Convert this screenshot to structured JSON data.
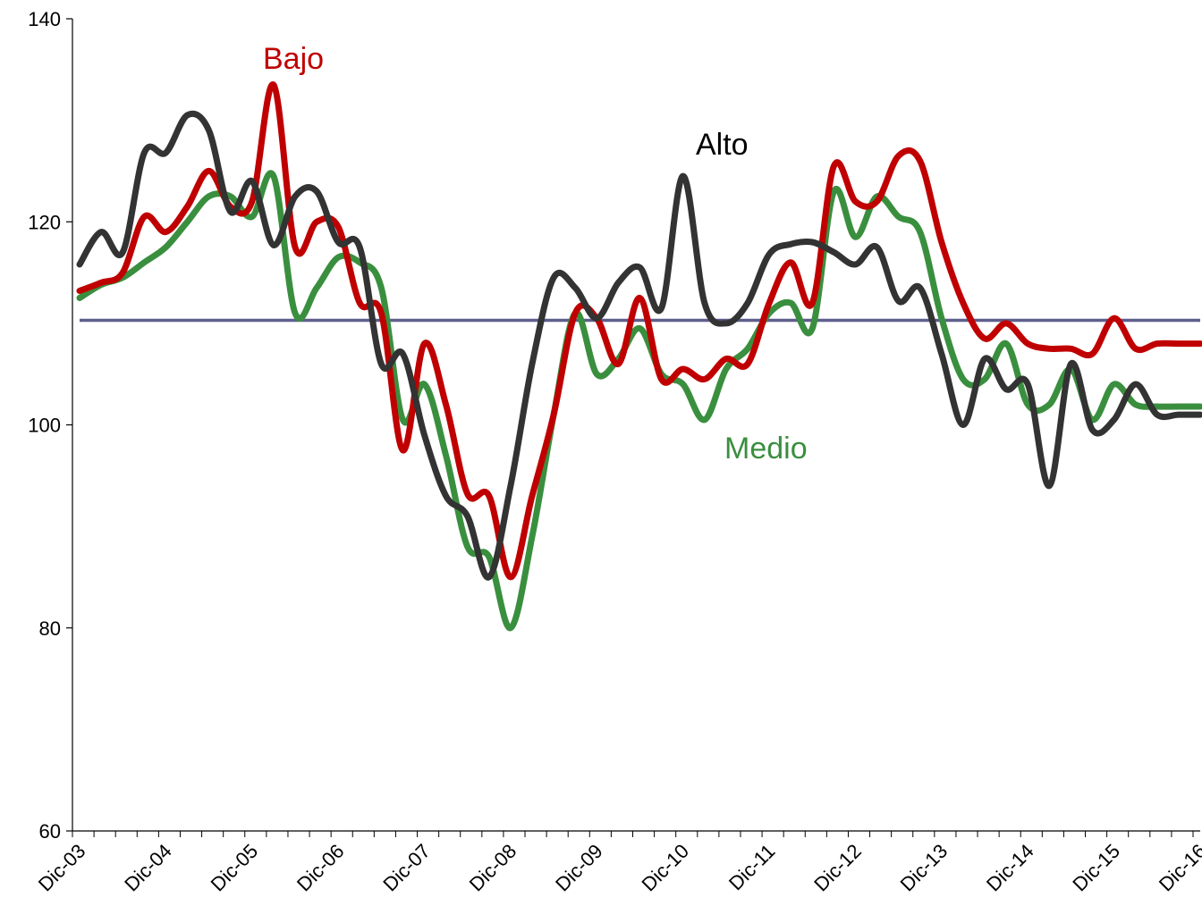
{
  "chart_data": {
    "type": "line",
    "title": "",
    "xlabel": "",
    "ylabel": "",
    "ylim": [
      60,
      140
    ],
    "yticks": [
      60,
      80,
      100,
      120,
      140
    ],
    "xlim": [
      2003.917,
      2017.0
    ],
    "x_tick_labels": [
      "Dic-03",
      "Dic-04",
      "Dic-05",
      "Dic-06",
      "Dic-07",
      "Dic-08",
      "Dic-09",
      "Dic-10",
      "Dic-11",
      "Dic-12",
      "Dic-13",
      "Dic-14",
      "Dic-15",
      "Dic-16"
    ],
    "reference_line": {
      "value": 110.3,
      "color": "#5e5e8e"
    },
    "legend": "direct labels on lines",
    "grid": false,
    "series": [
      {
        "name": "Alto",
        "color": "#333333",
        "x": [
          2004.0,
          2004.25,
          2004.5,
          2004.75,
          2005.0,
          2005.25,
          2005.5,
          2005.75,
          2006.0,
          2006.25,
          2006.5,
          2006.75,
          2007.0,
          2007.25,
          2007.5,
          2007.75,
          2008.0,
          2008.25,
          2008.5,
          2008.75,
          2009.0,
          2009.25,
          2009.5,
          2009.75,
          2010.0,
          2010.25,
          2010.5,
          2010.75,
          2011.0,
          2011.25,
          2011.5,
          2011.75,
          2012.0,
          2012.25,
          2012.5,
          2012.75,
          2013.0,
          2013.25,
          2013.5,
          2013.75,
          2014.0,
          2014.25,
          2014.5,
          2014.75,
          2015.0,
          2015.25,
          2015.5,
          2015.75,
          2016.0,
          2016.25,
          2016.5,
          2016.75,
          2017.0
        ],
        "values": [
          115.8,
          119.0,
          117.0,
          126.8,
          126.8,
          130.5,
          129.0,
          121.0,
          124.0,
          117.7,
          122.5,
          123.0,
          118.0,
          117.5,
          106.0,
          107.0,
          99.0,
          93.0,
          91.0,
          85.0,
          94.0,
          106.0,
          114.5,
          113.5,
          110.5,
          114.0,
          115.5,
          111.5,
          124.5,
          112.0,
          110.0,
          112.0,
          116.8,
          117.8,
          118.0,
          117.0,
          115.8,
          117.5,
          112.2,
          113.5,
          107.0,
          100.0,
          106.5,
          103.5,
          104.0,
          94.0,
          106.0,
          99.5,
          100.5,
          104.0,
          101.0,
          101.0,
          101.0
        ]
      },
      {
        "name": "Bajo",
        "color": "#c00000",
        "x": [
          2004.0,
          2004.25,
          2004.5,
          2004.75,
          2005.0,
          2005.25,
          2005.5,
          2005.75,
          2006.0,
          2006.25,
          2006.5,
          2006.75,
          2007.0,
          2007.25,
          2007.5,
          2007.75,
          2008.0,
          2008.25,
          2008.5,
          2008.75,
          2009.0,
          2009.25,
          2009.5,
          2009.75,
          2010.0,
          2010.25,
          2010.5,
          2010.75,
          2011.0,
          2011.25,
          2011.5,
          2011.75,
          2012.0,
          2012.25,
          2012.5,
          2012.75,
          2013.0,
          2013.25,
          2013.5,
          2013.75,
          2014.0,
          2014.25,
          2014.5,
          2014.75,
          2015.0,
          2015.25,
          2015.5,
          2015.75,
          2016.0,
          2016.25,
          2016.5,
          2016.75,
          2017.0
        ],
        "values": [
          113.2,
          114.0,
          115.0,
          120.5,
          119.0,
          121.5,
          125.0,
          121.5,
          122.0,
          133.5,
          117.5,
          120.0,
          119.5,
          112.0,
          111.0,
          97.5,
          108.0,
          102.0,
          93.2,
          93.0,
          85.0,
          93.0,
          101.0,
          111.0,
          110.5,
          106.0,
          112.5,
          104.5,
          105.5,
          104.5,
          106.5,
          106.0,
          112.0,
          116.0,
          112.0,
          125.5,
          122.0,
          122.0,
          126.5,
          126.0,
          118.0,
          112.0,
          108.5,
          110.0,
          108.0,
          107.5,
          107.5,
          107.0,
          110.5,
          107.5,
          108.0,
          108.0,
          108.0
        ]
      },
      {
        "name": "Medio",
        "color": "#3a8f3f",
        "x": [
          2004.0,
          2004.25,
          2004.5,
          2004.75,
          2005.0,
          2005.25,
          2005.5,
          2005.75,
          2006.0,
          2006.25,
          2006.5,
          2006.75,
          2007.0,
          2007.25,
          2007.5,
          2007.75,
          2008.0,
          2008.25,
          2008.5,
          2008.75,
          2009.0,
          2009.25,
          2009.5,
          2009.75,
          2010.0,
          2010.25,
          2010.5,
          2010.75,
          2011.0,
          2011.25,
          2011.5,
          2011.75,
          2012.0,
          2012.25,
          2012.5,
          2012.75,
          2013.0,
          2013.25,
          2013.5,
          2013.75,
          2014.0,
          2014.25,
          2014.5,
          2014.75,
          2015.0,
          2015.25,
          2015.5,
          2015.75,
          2016.0,
          2016.25,
          2016.5,
          2016.75,
          2017.0
        ],
        "values": [
          112.5,
          113.8,
          114.5,
          116.0,
          117.5,
          120.0,
          122.5,
          122.5,
          120.5,
          124.5,
          111.0,
          113.5,
          116.5,
          116.0,
          113.5,
          100.5,
          104.0,
          97.0,
          88.0,
          87.0,
          80.0,
          89.0,
          101.0,
          111.0,
          105.0,
          106.5,
          109.5,
          105.0,
          104.0,
          100.5,
          105.5,
          107.5,
          111.0,
          112.0,
          109.5,
          123.0,
          118.5,
          122.5,
          120.5,
          119.0,
          110.5,
          104.5,
          104.5,
          108.0,
          102.0,
          102.0,
          105.5,
          100.5,
          104.0,
          102.0,
          101.8,
          101.8,
          101.8
        ]
      }
    ],
    "annotations": [
      {
        "text": "Bajo",
        "color": "#c00000",
        "series": "Bajo"
      },
      {
        "text": "Alto",
        "color": "#000000",
        "series": "Alto"
      },
      {
        "text": "Medio",
        "color": "#3a8f3f",
        "series": "Medio"
      }
    ]
  }
}
